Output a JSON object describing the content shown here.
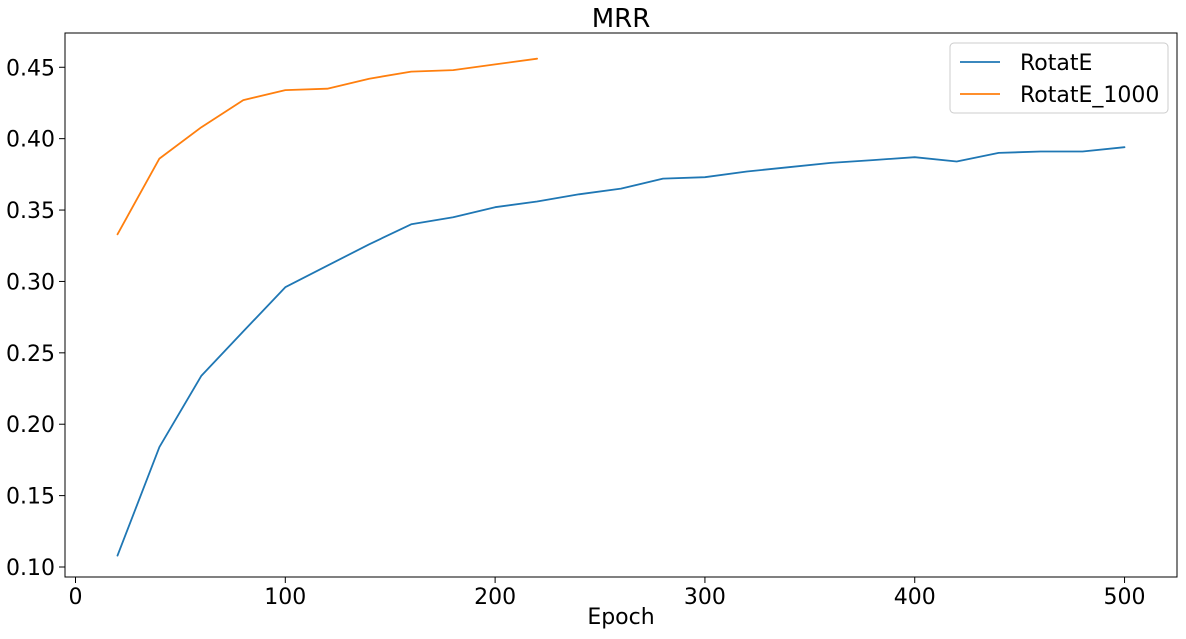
{
  "chart_data": {
    "type": "line",
    "title": "MRR",
    "xlabel": "Epoch",
    "ylabel": "",
    "xlim": [
      -5,
      525
    ],
    "ylim": [
      0.093,
      0.474
    ],
    "xticks": [
      0,
      100,
      200,
      300,
      400,
      500
    ],
    "xtick_labels": [
      "0",
      "100",
      "200",
      "300",
      "400",
      "500"
    ],
    "yticks": [
      0.1,
      0.15,
      0.2,
      0.25,
      0.3,
      0.35,
      0.4,
      0.45
    ],
    "ytick_labels": [
      "0.10",
      "0.15",
      "0.20",
      "0.25",
      "0.30",
      "0.35",
      "0.40",
      "0.45"
    ],
    "grid": false,
    "legend_position": "top-right",
    "series": [
      {
        "name": "RotatE",
        "color": "#1f77b4",
        "x": [
          20,
          40,
          60,
          80,
          100,
          120,
          140,
          160,
          180,
          200,
          220,
          240,
          260,
          280,
          300,
          320,
          340,
          360,
          380,
          400,
          420,
          440,
          460,
          480,
          500
        ],
        "y": [
          0.108,
          0.184,
          0.234,
          0.265,
          0.296,
          0.311,
          0.326,
          0.34,
          0.345,
          0.352,
          0.356,
          0.361,
          0.365,
          0.372,
          0.373,
          0.377,
          0.38,
          0.383,
          0.385,
          0.387,
          0.384,
          0.39,
          0.391,
          0.391,
          0.394
        ]
      },
      {
        "name": "RotatE_1000",
        "color": "#ff7f0e",
        "x": [
          20,
          40,
          60,
          80,
          100,
          120,
          140,
          160,
          180,
          200,
          220
        ],
        "y": [
          0.333,
          0.386,
          0.408,
          0.427,
          0.434,
          0.435,
          0.442,
          0.447,
          0.448,
          0.452,
          0.456
        ]
      }
    ]
  }
}
